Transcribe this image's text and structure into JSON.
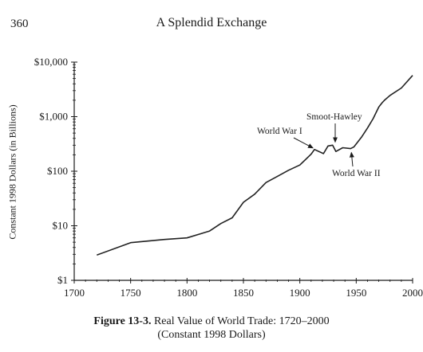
{
  "page": {
    "number": "360",
    "running_head": "A Splendid Exchange"
  },
  "caption": {
    "figure_number": "Figure 13-3.",
    "title": "Real Value of World Trade: 1720–2000",
    "subtitle": "(Constant 1998 Dollars)"
  },
  "chart_data": {
    "type": "line",
    "title": "",
    "xlabel": "",
    "ylabel": "Constant 1998 Dollars (in Billions)",
    "y_scale": "log",
    "xlim": [
      1700,
      2000
    ],
    "ylim": [
      1,
      10000
    ],
    "grid": false,
    "x_ticks": [
      1700,
      1750,
      1800,
      1850,
      1900,
      1950,
      2000
    ],
    "x_tick_labels": [
      "1700",
      "1750",
      "1800",
      "1850",
      "1900",
      "1950",
      "2000"
    ],
    "y_ticks": [
      1,
      10,
      100,
      1000,
      10000
    ],
    "y_tick_labels": [
      "$1",
      "$10",
      "$100",
      "$1,000",
      "$10,000"
    ],
    "series": [
      {
        "color": "#222222",
        "x": [
          1720,
          1750,
          1780,
          1800,
          1820,
          1830,
          1840,
          1850,
          1860,
          1870,
          1880,
          1890,
          1900,
          1910,
          1913,
          1921,
          1925,
          1929,
          1932,
          1938,
          1945,
          1948,
          1955,
          1960,
          1965,
          1970,
          1973,
          1975,
          1980,
          1990,
          2000
        ],
        "y": [
          2.9,
          4.9,
          5.6,
          6.0,
          8.0,
          11,
          14,
          27,
          38,
          62,
          80,
          104,
          130,
          205,
          250,
          210,
          290,
          300,
          230,
          270,
          260,
          280,
          430,
          620,
          920,
          1500,
          1800,
          2000,
          2450,
          3350,
          5700
        ]
      }
    ],
    "annotations": [
      {
        "text": "World War I",
        "x": 1913,
        "y": 250
      },
      {
        "text": "Smoot-Hawley",
        "x": 1930,
        "y": 300
      },
      {
        "text": "World War II",
        "x": 1945,
        "y": 260
      }
    ]
  }
}
